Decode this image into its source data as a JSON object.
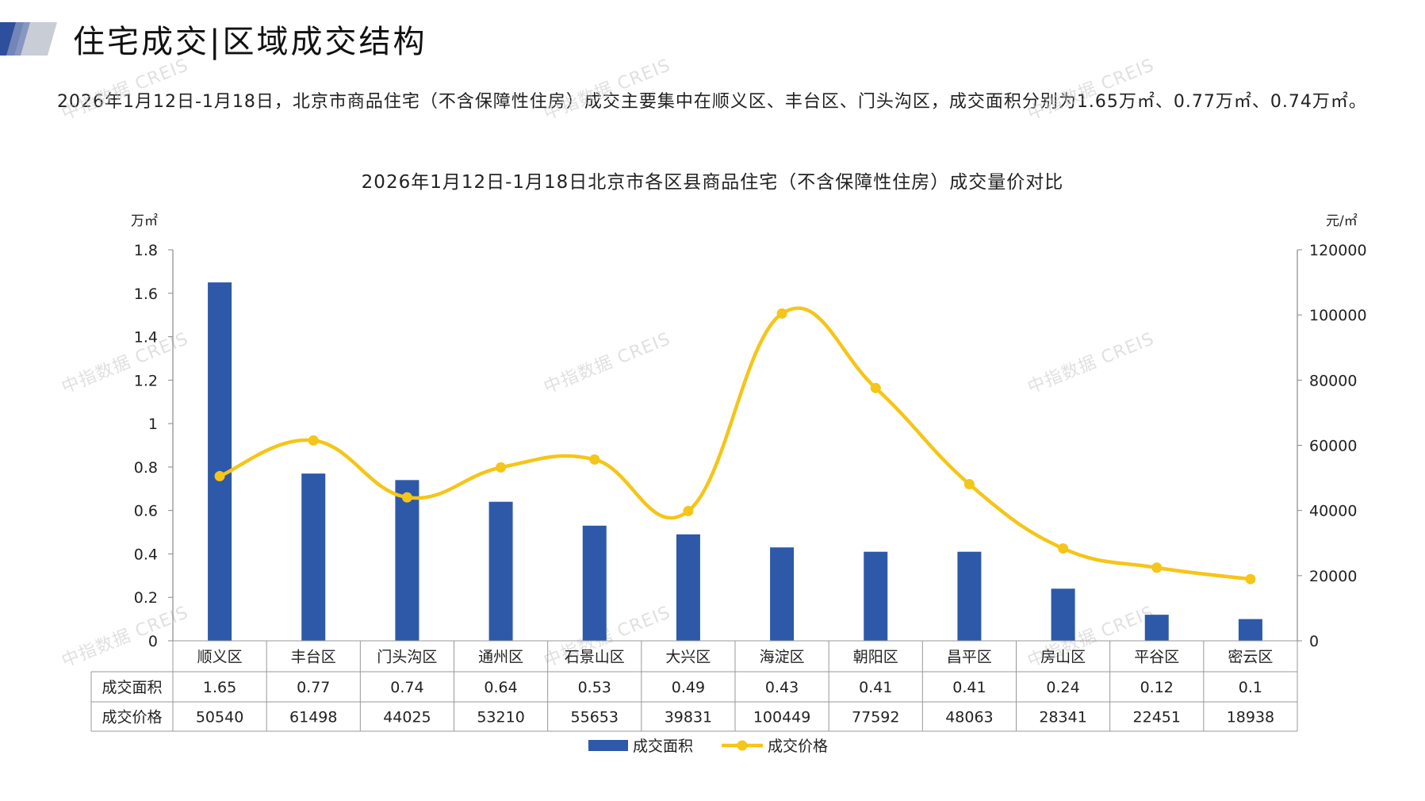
{
  "header": {
    "title": "住宅成交|区域成交结构",
    "summary": "2026年1月12日-1月18日，北京市商品住宅（不含保障性住房）成交主要集中在顺义区、丰台区、门头沟区，成交面积分别为1.65万㎡、0.77万㎡、0.74万㎡。"
  },
  "watermark": "中指数据 CREIS",
  "colors": {
    "bar": "#2E59A8",
    "line": "#F5C518",
    "axis": "#888888",
    "grid_table": "#999999"
  },
  "chart_data": {
    "type": "bar",
    "title": "2026年1月12日-1月18日北京市各区县商品住宅（不含保障性住房）成交量价对比",
    "categories": [
      "顺义区",
      "丰台区",
      "门头沟区",
      "通州区",
      "石景山区",
      "大兴区",
      "海淀区",
      "朝阳区",
      "昌平区",
      "房山区",
      "平谷区",
      "密云区"
    ],
    "series": [
      {
        "name": "成交面积",
        "type": "bar",
        "axis": "left",
        "values": [
          1.65,
          0.77,
          0.74,
          0.64,
          0.53,
          0.49,
          0.43,
          0.41,
          0.41,
          0.24,
          0.12,
          0.1
        ],
        "labels": [
          "1.65",
          "0.77",
          "0.74",
          "0.64",
          "0.53",
          "0.49",
          "0.43",
          "0.41",
          "0.41",
          "0.24",
          "0.12",
          "0.1"
        ]
      },
      {
        "name": "成交价格",
        "type": "line",
        "axis": "right",
        "smooth": true,
        "values": [
          50540,
          61498,
          44025,
          53210,
          55653,
          39831,
          100449,
          77592,
          48063,
          28341,
          22451,
          18938
        ],
        "labels": [
          "50540",
          "61498",
          "44025",
          "53210",
          "55653",
          "39831",
          "100449",
          "77592",
          "48063",
          "28341",
          "22451",
          "18938"
        ]
      }
    ],
    "y_left": {
      "unit": "万㎡",
      "ylim": [
        0,
        1.8
      ],
      "ticks": [
        "0",
        "0.2",
        "0.4",
        "0.6",
        "0.8",
        "1",
        "1.2",
        "1.4",
        "1.6",
        "1.8"
      ]
    },
    "y_right": {
      "unit": "元/㎡",
      "ylim": [
        0,
        120000
      ],
      "ticks": [
        "0",
        "20000",
        "40000",
        "60000",
        "80000",
        "100000",
        "120000"
      ]
    },
    "legend": {
      "position": "bottom"
    },
    "data_table": true
  }
}
